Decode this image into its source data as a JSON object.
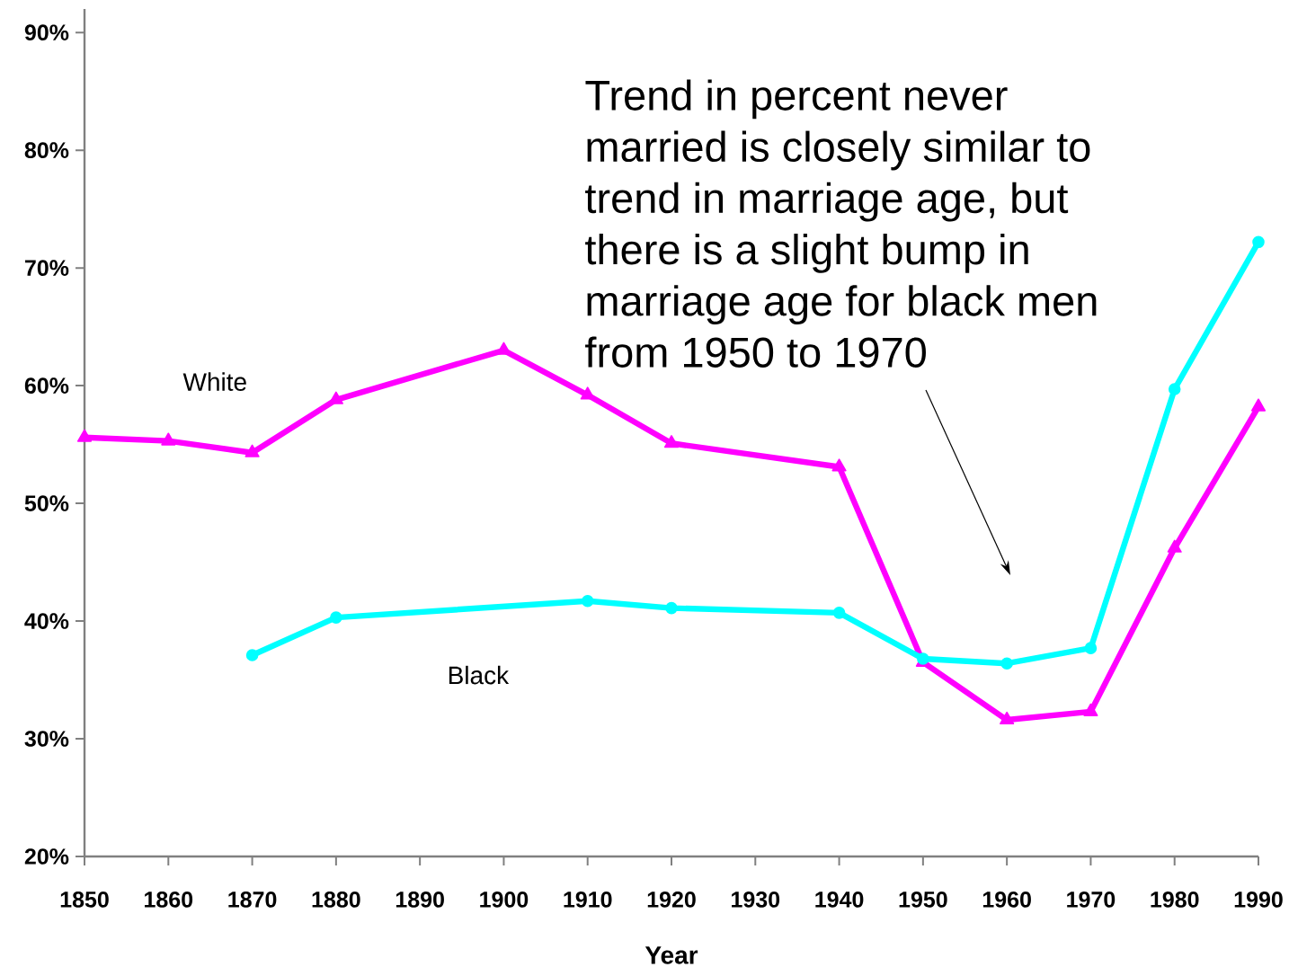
{
  "chart_data": {
    "type": "line",
    "xlabel": "Year",
    "xlim": [
      1850,
      1990
    ],
    "xticks": [
      1850,
      1860,
      1870,
      1880,
      1890,
      1900,
      1910,
      1920,
      1930,
      1940,
      1950,
      1960,
      1970,
      1980,
      1990
    ],
    "ylim": [
      20,
      92
    ],
    "yticks": [
      {
        "value": 20,
        "label": "20%"
      },
      {
        "value": 30,
        "label": "30%"
      },
      {
        "value": 40,
        "label": "40%"
      },
      {
        "value": 50,
        "label": "50%"
      },
      {
        "value": 60,
        "label": "60%"
      },
      {
        "value": 70,
        "label": "70%"
      },
      {
        "value": 80,
        "label": "80%"
      },
      {
        "value": 90,
        "label": "90%"
      }
    ],
    "series": [
      {
        "name": "White",
        "color": "#ff00ff",
        "marker": "triangle",
        "x": [
          1850,
          1860,
          1870,
          1880,
          1900,
          1910,
          1920,
          1940,
          1950,
          1960,
          1970,
          1980,
          1990
        ],
        "values": [
          55.6,
          55.3,
          54.3,
          58.8,
          63.0,
          59.2,
          55.1,
          53.1,
          36.5,
          31.6,
          32.3,
          46.2,
          58.2
        ]
      },
      {
        "name": "Black",
        "color": "#00ffff",
        "marker": "circle",
        "x": [
          1870,
          1880,
          1910,
          1920,
          1940,
          1950,
          1960,
          1970,
          1980,
          1990
        ],
        "values": [
          37.1,
          40.3,
          41.7,
          41.1,
          40.7,
          36.8,
          36.4,
          37.7,
          59.7,
          72.2
        ]
      }
    ],
    "annotations": [
      "Trend in percent never married is closely similar to trend in marriage age, but there is a slight bump in marriage age for black men from 1950 to 1970"
    ]
  }
}
